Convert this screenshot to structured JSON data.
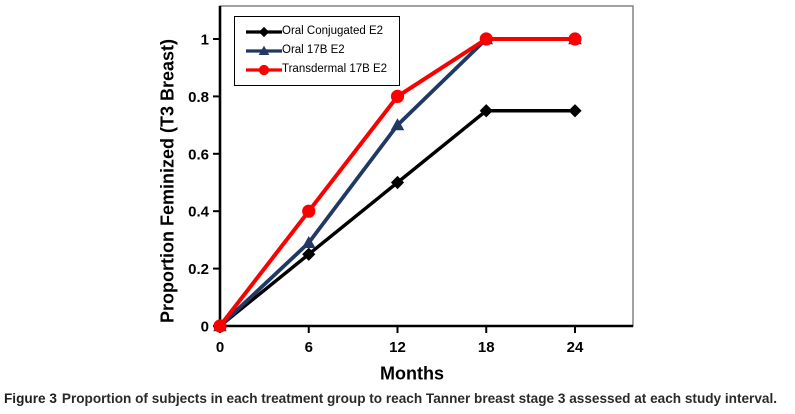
{
  "figure": {
    "caption_label": "Figure 3",
    "caption_text": "Proportion of subjects in each treatment group to reach Tanner breast stage 3 assessed at each study interval."
  },
  "chart_data": {
    "type": "line",
    "title": "",
    "xlabel": "Months",
    "ylabel": "Proportion Feminized (T3 Breast)",
    "x": [
      0,
      6,
      12,
      18,
      24
    ],
    "xticks": [
      0,
      6,
      12,
      18,
      24
    ],
    "yticks": [
      0,
      0.2,
      0.4,
      0.6,
      0.8,
      1
    ],
    "xlim": [
      0,
      28
    ],
    "ylim": [
      0,
      1.12
    ],
    "grid": false,
    "legend_position": "top-left-inside",
    "axis_color": "#000000",
    "frame_color": "#7a7a7a",
    "series": [
      {
        "name": "Oral Conjugated E2",
        "color": "#000000",
        "marker": "diamond",
        "line_width": 3.4,
        "values": [
          0,
          0.25,
          0.5,
          0.75,
          0.75
        ]
      },
      {
        "name": "Oral 17B E2",
        "color": "#1F3864",
        "marker": "triangle",
        "line_width": 3.8,
        "values": [
          0,
          0.29,
          0.7,
          1,
          1
        ]
      },
      {
        "name": "Transdermal 17B E2",
        "color": "#FB0000",
        "marker": "circle",
        "line_width": 4.0,
        "values": [
          0,
          0.4,
          0.8,
          1,
          1
        ]
      }
    ]
  }
}
